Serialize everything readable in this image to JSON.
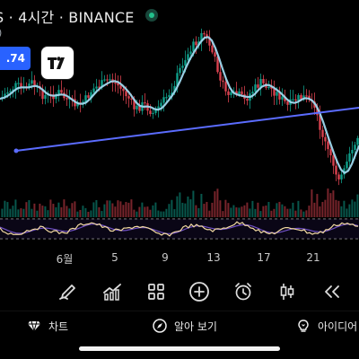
{
  "header": {
    "symbol_title": "S · 4시간 · BINANCE",
    "indicator_paren": ")",
    "live_color": "#22c08c"
  },
  "price_label": {
    "value": ".74",
    "color": "#2962ff"
  },
  "logo": {
    "icon": "tradingview-logo-icon"
  },
  "chart": {
    "x_axis_labels": [
      "6월",
      "5",
      "9",
      "13",
      "17",
      "21"
    ],
    "colors": {
      "up": "#0f9f8a",
      "down": "#d9414f",
      "ma": "#9fd8ee",
      "trendline": "#5b6cff",
      "oscillator_fast": "#f2d9a1",
      "oscillator_slow": "#6e4fc3",
      "oscillator_band": "#8a8a8a"
    }
  },
  "toolbar": {
    "items": [
      {
        "name": "draw-pen-icon"
      },
      {
        "name": "indicator-icon"
      },
      {
        "name": "layout-grid-icon"
      },
      {
        "name": "add-circle-icon"
      },
      {
        "name": "alarm-icon"
      },
      {
        "name": "candle-icon"
      },
      {
        "name": "rewind-icon"
      }
    ]
  },
  "nav": {
    "chart_label": "차트",
    "explore_label": "알아 보기",
    "ideas_label": "아이디어"
  }
}
